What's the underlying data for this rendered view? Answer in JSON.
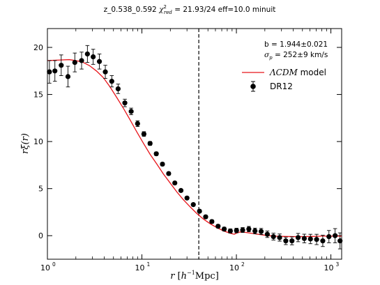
{
  "chart_data": {
    "type": "scatter",
    "title": "z_0.538_0.592 χ²_red = 21.93/24 eff=10.0 minuit",
    "title_parts": {
      "prefix": "z_0.538_0.592 ",
      "chi": "χ",
      "chi_sup": "2",
      "chi_sub": "red",
      "suffix": " = 21.93/24 eff=10.0 minuit"
    },
    "xlabel": "r [h⁻¹Mpc]",
    "xlabel_parts": {
      "r": "r",
      "open": " [",
      "h": "h",
      "exp": "−1",
      "unit": "Mpc]"
    },
    "ylabel": "rξ(r)",
    "xscale": "log",
    "xlim": [
      1,
      1300
    ],
    "ylim": [
      -2.5,
      22
    ],
    "x_ticks": [
      1,
      10,
      100,
      1000
    ],
    "x_tick_labels": [
      "10",
      "10",
      "10",
      "10"
    ],
    "x_tick_exponents": [
      "0",
      "1",
      "2",
      "3"
    ],
    "y_ticks": [
      0,
      5,
      10,
      15,
      20
    ],
    "y_tick_labels": [
      "0",
      "5",
      "10",
      "15",
      "20"
    ],
    "vline_x": 40,
    "annotations": {
      "b": "b = 1.944±0.021",
      "sigma_symbol": "σ",
      "sigma_sub": "p",
      "sigma_value": " = 252±9 km/s"
    },
    "legend": {
      "position": "upper-right",
      "model_label_italic": "ΛCDM",
      "model_label_rest": " model",
      "data_label": "DR12"
    },
    "colors": {
      "model": "#e8141a",
      "data": "#000000",
      "vline": "#000000"
    },
    "series": [
      {
        "name": "DR12",
        "kind": "errorbar",
        "x": [
          1.05,
          1.2,
          1.4,
          1.65,
          1.95,
          2.3,
          2.65,
          3.05,
          3.55,
          4.1,
          4.8,
          5.6,
          6.6,
          7.7,
          9.0,
          10.5,
          12.2,
          14.2,
          16.5,
          19.2,
          22.3,
          25.9,
          30.0,
          35.0,
          40.7,
          47.3,
          55.0,
          64.0,
          74.3,
          86.3,
          100.3,
          116.5,
          135.4,
          157.3,
          182.8,
          212.4,
          246.8,
          286.8,
          333.3,
          387.3,
          450.0,
          523.0,
          607.7,
          706.2,
          820.6,
          953.6,
          1108.2,
          1250.0
        ],
        "y": [
          17.4,
          17.5,
          18.1,
          16.9,
          18.4,
          18.6,
          19.3,
          19.0,
          18.5,
          17.4,
          16.4,
          15.6,
          14.1,
          13.2,
          11.9,
          10.8,
          9.8,
          8.7,
          7.6,
          6.6,
          5.6,
          4.8,
          4.0,
          3.3,
          2.6,
          2.0,
          1.5,
          1.0,
          0.7,
          0.5,
          0.55,
          0.6,
          0.7,
          0.5,
          0.45,
          0.15,
          -0.1,
          -0.2,
          -0.55,
          -0.55,
          -0.2,
          -0.3,
          -0.35,
          -0.4,
          -0.55,
          -0.1,
          0.0,
          -0.55
        ],
        "yerr": [
          1.2,
          1.1,
          1.1,
          1.1,
          1.0,
          0.9,
          0.9,
          0.8,
          0.8,
          0.7,
          0.6,
          0.5,
          0.4,
          0.35,
          0.3,
          0.25,
          0.2,
          0.18,
          0.16,
          0.15,
          0.14,
          0.14,
          0.14,
          0.15,
          0.15,
          0.16,
          0.17,
          0.18,
          0.2,
          0.22,
          0.24,
          0.26,
          0.28,
          0.3,
          0.32,
          0.34,
          0.36,
          0.38,
          0.4,
          0.42,
          0.44,
          0.46,
          0.5,
          0.55,
          0.6,
          0.65,
          0.75,
          0.85
        ]
      },
      {
        "name": "ΛCDM model",
        "kind": "line",
        "x": [
          1,
          1.3,
          1.7,
          2.0,
          2.4,
          2.8,
          3.3,
          3.9,
          4.6,
          5.4,
          6.4,
          7.5,
          8.8,
          10.4,
          12.2,
          14.4,
          16.9,
          19.9,
          23.4,
          27.6,
          32.5,
          38.2,
          45.0,
          53.0,
          62.4,
          73.5,
          86.5,
          95,
          102,
          110,
          125,
          145,
          170,
          200,
          250,
          320,
          400,
          500,
          650,
          800,
          1000,
          1300
        ],
        "y": [
          18.6,
          18.65,
          18.7,
          18.6,
          18.4,
          18.05,
          17.5,
          16.8,
          15.8,
          14.7,
          13.5,
          12.3,
          11.05,
          9.8,
          8.65,
          7.6,
          6.55,
          5.6,
          4.65,
          3.8,
          3.05,
          2.35,
          1.75,
          1.25,
          0.85,
          0.5,
          0.25,
          0.15,
          0.3,
          0.4,
          0.35,
          0.25,
          0.15,
          0.05,
          -0.05,
          -0.08,
          -0.1,
          -0.1,
          -0.08,
          -0.05,
          -0.05,
          -0.05
        ]
      }
    ]
  }
}
